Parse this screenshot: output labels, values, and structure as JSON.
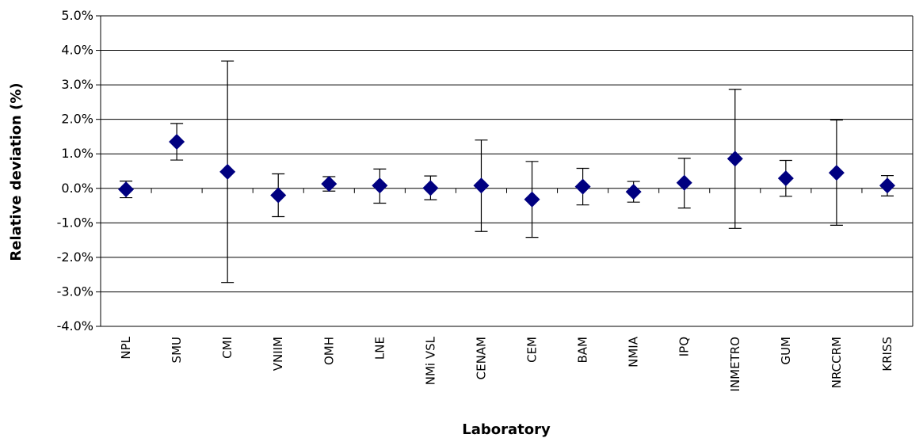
{
  "chart_data": {
    "type": "scatter",
    "title": "",
    "xlabel": "Laboratory",
    "ylabel": "Relative deviation (%)",
    "ylim": [
      -4.0,
      5.0
    ],
    "y_ticks": [
      -4.0,
      -3.0,
      -2.0,
      -1.0,
      0.0,
      1.0,
      2.0,
      3.0,
      4.0,
      5.0
    ],
    "y_tick_labels": [
      "-4.0%",
      "-3.0%",
      "-2.0%",
      "-1.0%",
      "0.0%",
      "1.0%",
      "2.0%",
      "3.0%",
      "4.0%",
      "5.0%"
    ],
    "grid": "horizontal",
    "marker_color": "#000080",
    "categories": [
      "NPL",
      "SMU",
      "CMI",
      "VNIIM",
      "OMH",
      "LNE",
      "NMi VSL",
      "CENAM",
      "CEM",
      "BAM",
      "NMIA",
      "IPQ",
      "INMETRO",
      "GUM",
      "NRCCRM",
      "KRISS"
    ],
    "series": [
      {
        "values": [
          -0.03,
          1.35,
          0.48,
          -0.2,
          0.13,
          0.08,
          0.01,
          0.08,
          -0.32,
          0.05,
          -0.1,
          0.16,
          0.86,
          0.29,
          0.45,
          0.08
        ],
        "error_low": [
          -0.27,
          0.82,
          -2.73,
          -0.82,
          -0.08,
          -0.43,
          -0.33,
          -1.25,
          -1.42,
          -0.48,
          -0.4,
          -0.57,
          -1.16,
          -0.23,
          -1.07,
          -0.22
        ],
        "error_high": [
          0.21,
          1.88,
          3.69,
          0.42,
          0.34,
          0.56,
          0.36,
          1.4,
          0.78,
          0.58,
          0.2,
          0.87,
          2.87,
          0.81,
          1.98,
          0.37
        ]
      }
    ]
  }
}
